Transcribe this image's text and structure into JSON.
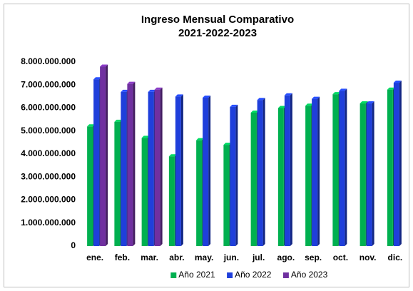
{
  "chart_data": {
    "type": "bar",
    "title": "Ingreso Mensual Comparativo",
    "subtitle": "2021-2022-2023",
    "categories": [
      "ene.",
      "feb.",
      "mar.",
      "abr.",
      "may.",
      "jun.",
      "jul.",
      "ago.",
      "sep.",
      "oct.",
      "nov.",
      "dic."
    ],
    "series": [
      {
        "name": "Año 2021",
        "color": "#00b050",
        "values": [
          5200000000,
          5400000000,
          4700000000,
          3900000000,
          4600000000,
          4400000000,
          5800000000,
          6000000000,
          6100000000,
          6600000000,
          6200000000,
          6800000000
        ]
      },
      {
        "name": "Año 2022",
        "color": "#1f3fdb",
        "values": [
          7250000000,
          6700000000,
          6700000000,
          6500000000,
          6450000000,
          6050000000,
          6350000000,
          6550000000,
          6400000000,
          6750000000,
          6200000000,
          7100000000
        ]
      },
      {
        "name": "Año 2023",
        "color": "#7030a0",
        "values": [
          7800000000,
          7050000000,
          6800000000,
          null,
          null,
          null,
          null,
          null,
          null,
          null,
          null,
          null
        ]
      }
    ],
    "ylim": [
      0,
      8000000000
    ],
    "yticks": [
      0,
      {
        "value": 1000000000,
        "label": "1.000.000.000"
      },
      {
        "value": 2000000000,
        "label": "2.000.000.000"
      },
      {
        "value": 3000000000,
        "label": "3.000.000.000"
      },
      {
        "value": 4000000000,
        "label": "4.000.000.000"
      },
      {
        "value": 5000000000,
        "label": "5.000.000.000"
      },
      {
        "value": 6000000000,
        "label": "6.000.000.000"
      },
      {
        "value": 7000000000,
        "label": "7.000.000.000"
      },
      {
        "value": 8000000000,
        "label": "8.000.000.000"
      }
    ],
    "legend": "bottom"
  }
}
